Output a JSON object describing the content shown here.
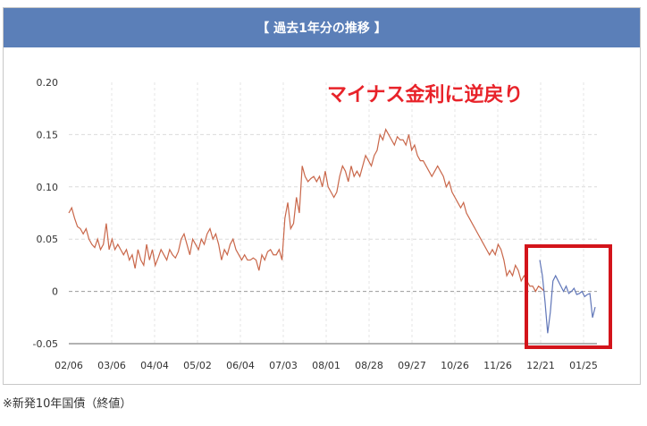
{
  "header": {
    "title": "【 過去1年分の推移 】"
  },
  "footnote": "※新発10年国債（終値）",
  "chart_data": {
    "type": "line",
    "title": "",
    "xlabel": "",
    "ylabel": "",
    "ylim": [
      -0.05,
      0.2
    ],
    "yticks": [
      "0.20",
      "0.15",
      "0.10",
      "0.05",
      "0",
      "-0.05"
    ],
    "ytick_values": [
      0.2,
      0.15,
      0.1,
      0.05,
      0,
      -0.05
    ],
    "xticks": [
      "02/06",
      "03/06",
      "04/04",
      "05/02",
      "06/04",
      "07/03",
      "08/01",
      "08/28",
      "09/27",
      "10/26",
      "11/26",
      "12/21",
      "01/25"
    ],
    "grid": true,
    "annotation": {
      "text": "マイナス金利に逆戻り",
      "color": "#e8232a"
    },
    "highlight_box_color": "#d3141b",
    "series": [
      {
        "name": "",
        "color": "#c9674a",
        "y": [
          0.075,
          0.08,
          0.07,
          0.062,
          0.06,
          0.055,
          0.06,
          0.05,
          0.045,
          0.042,
          0.05,
          0.04,
          0.045,
          0.065,
          0.04,
          0.05,
          0.04,
          0.045,
          0.04,
          0.035,
          0.04,
          0.03,
          0.035,
          0.022,
          0.04,
          0.03,
          0.025,
          0.045,
          0.03,
          0.04,
          0.025,
          0.032,
          0.04,
          0.035,
          0.03,
          0.04,
          0.035,
          0.032,
          0.038,
          0.05,
          0.055,
          0.045,
          0.035,
          0.05,
          0.045,
          0.04,
          0.05,
          0.045,
          0.055,
          0.06,
          0.05,
          0.055,
          0.045,
          0.03,
          0.04,
          0.035,
          0.045,
          0.05,
          0.04,
          0.035,
          0.03,
          0.035,
          0.03,
          0.03,
          0.032,
          0.03,
          0.02,
          0.035,
          0.03,
          0.038,
          0.04,
          0.035,
          0.035,
          0.04,
          0.03,
          0.07,
          0.085,
          0.06,
          0.065,
          0.09,
          0.075,
          0.12,
          0.11,
          0.105,
          0.108,
          0.11,
          0.105,
          0.11,
          0.1,
          0.115,
          0.1,
          0.095,
          0.09,
          0.095,
          0.11,
          0.12,
          0.115,
          0.105,
          0.12,
          0.11,
          0.115,
          0.11,
          0.12,
          0.13,
          0.125,
          0.12,
          0.13,
          0.135,
          0.15,
          0.145,
          0.155,
          0.15,
          0.145,
          0.14,
          0.148,
          0.145,
          0.145,
          0.14,
          0.15,
          0.135,
          0.14,
          0.13,
          0.125,
          0.125,
          0.12,
          0.115,
          0.11,
          0.115,
          0.12,
          0.115,
          0.11,
          0.1,
          0.105,
          0.095,
          0.09,
          0.085,
          0.08,
          0.085,
          0.075,
          0.07,
          0.065,
          0.06,
          0.055,
          0.05,
          0.045,
          0.04,
          0.035,
          0.04,
          0.035,
          0.045,
          0.04,
          0.03,
          0.015,
          0.02,
          0.015,
          0.025,
          0.02,
          0.01,
          0.015,
          0.01,
          0.005,
          0.005,
          0.0,
          0.005,
          0.003,
          0.0
        ]
      },
      {
        "name": "",
        "color": "#6076b8",
        "y": [
          0.03,
          0.015,
          -0.01,
          -0.04,
          -0.02,
          0.01,
          0.015,
          0.01,
          0.005,
          0.0,
          0.005,
          -0.002,
          0.0,
          0.003,
          -0.003,
          -0.002,
          0.0,
          -0.005,
          -0.003,
          -0.002,
          -0.025,
          -0.015
        ]
      }
    ]
  }
}
